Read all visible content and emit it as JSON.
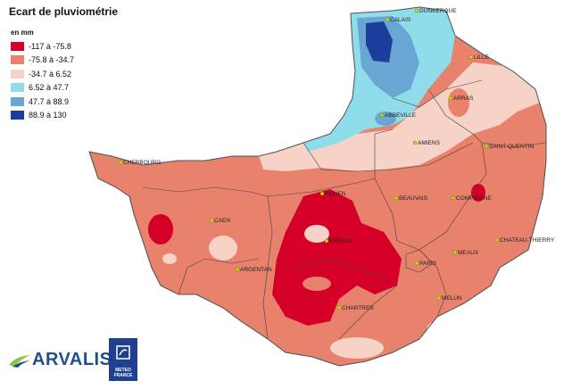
{
  "map": {
    "title": "Ecart de pluviométrie",
    "unit": "en mm",
    "legend": [
      {
        "label": "-117 à -75.8",
        "color": "#d40027"
      },
      {
        "label": "-75.8 à -34.7",
        "color": "#e8826c"
      },
      {
        "label": "-34.7 à 6.52",
        "color": "#f6d3c6"
      },
      {
        "label": "6.52 à 47.7",
        "color": "#8fdcea"
      },
      {
        "label": "47.7 à 88.9",
        "color": "#6aa6d4"
      },
      {
        "label": "88.9 à 130",
        "color": "#1b3e9b"
      }
    ],
    "cities": [
      {
        "id": "calais",
        "name": "CALAIS"
      },
      {
        "id": "dunkerque",
        "name": "DUNKERQUE"
      },
      {
        "id": "lille",
        "name": "LILLE"
      },
      {
        "id": "arras",
        "name": "ARRAS"
      },
      {
        "id": "abbeville",
        "name": "ABBEVILLE"
      },
      {
        "id": "amiens",
        "name": "AMIENS"
      },
      {
        "id": "saint-quentin",
        "name": "SAINT-QUENTIN"
      },
      {
        "id": "cherbourg",
        "name": "CHERBOURG"
      },
      {
        "id": "rouen",
        "name": "ROUEN"
      },
      {
        "id": "beauvais",
        "name": "BEAUVAIS"
      },
      {
        "id": "compiegne",
        "name": "COMPIEGNE"
      },
      {
        "id": "caen",
        "name": "CAEN"
      },
      {
        "id": "chateau-thierry",
        "name": "CHATEAU-THIERRY"
      },
      {
        "id": "evreux",
        "name": "EVREUX"
      },
      {
        "id": "paris",
        "name": "PARIS"
      },
      {
        "id": "meaux",
        "name": "MEAUX"
      },
      {
        "id": "argentan",
        "name": "ARGENTAN"
      },
      {
        "id": "chartres",
        "name": "CHARTRES"
      },
      {
        "id": "melun",
        "name": "MELUN"
      }
    ]
  },
  "logos": {
    "arvalis": "ARVALIS",
    "meteo_line1": "METEO",
    "meteo_line2": "FRANCE"
  }
}
